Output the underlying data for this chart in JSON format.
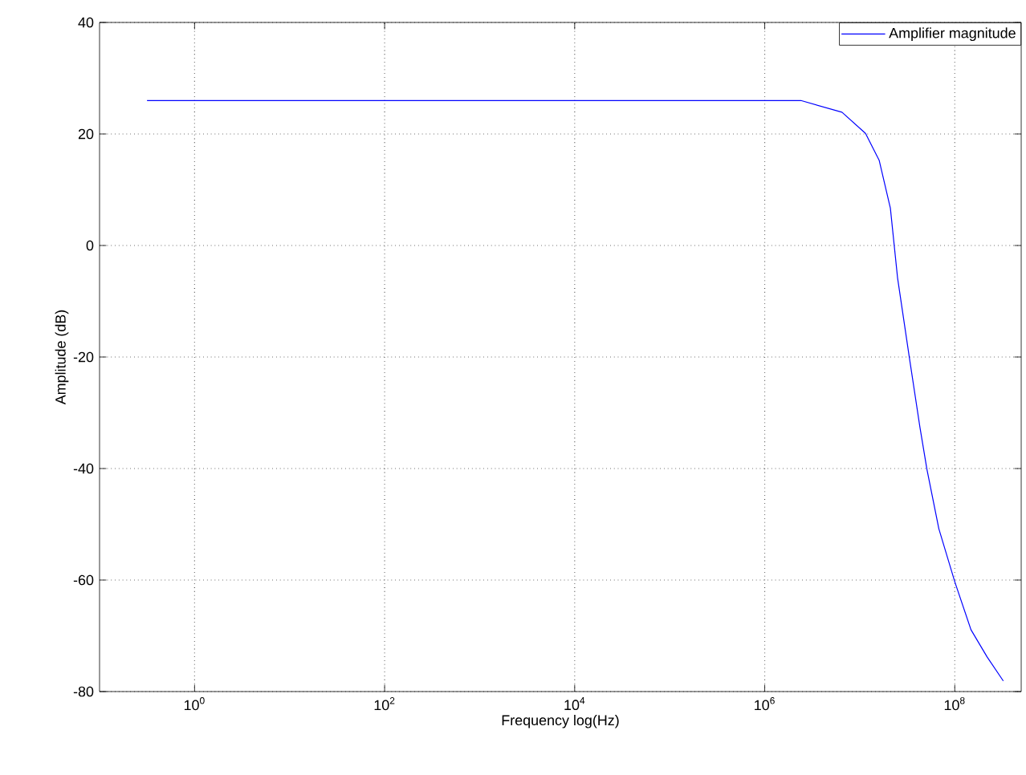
{
  "chart_data": {
    "type": "line",
    "xlabel": "Frequency log(Hz)",
    "ylabel": "Amplitude (dB)",
    "log": "x",
    "xlim": [
      0.1,
      500000000.0
    ],
    "ylim": [
      -80,
      40
    ],
    "xticks": [
      {
        "value": 1,
        "label": "10$^{0}$"
      },
      {
        "value": 100,
        "label": "10$^{2}$"
      },
      {
        "value": 10000,
        "label": "10$^{4}$"
      },
      {
        "value": 1000000,
        "label": "10$^{6}$"
      },
      {
        "value": 100000000,
        "label": "10$^{8}$"
      }
    ],
    "yticks": [
      -80,
      -60,
      -40,
      -20,
      0,
      20,
      40
    ],
    "grid": true,
    "legend": "top right",
    "line_style": "solid",
    "x": [
      0.316,
      1000000,
      2400000,
      6500000,
      11500000,
      16000000,
      21000000,
      25000000,
      33000000,
      43000000,
      51000000,
      68000000,
      100000000,
      148000000,
      219000000,
      324000000
    ],
    "series": [
      {
        "name": "Amplifier magnitude",
        "color": "#0000ff",
        "values": [
          26,
          26,
          26,
          23.9,
          20.1,
          15.3,
          6.7,
          -5.8,
          -19.7,
          -32.6,
          -40.2,
          -50.8,
          -60.3,
          -68.9,
          -73.8,
          -78.1
        ]
      }
    ]
  }
}
